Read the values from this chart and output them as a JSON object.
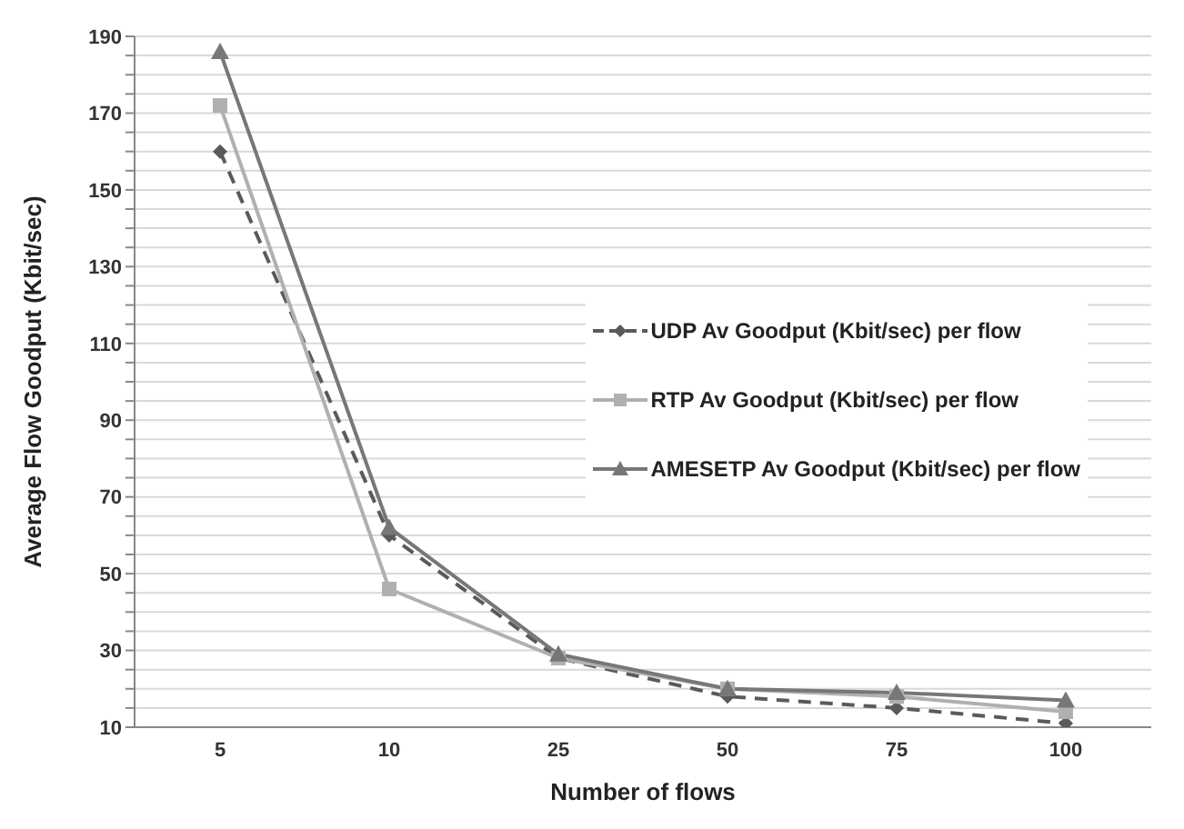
{
  "chart_data": {
    "type": "line",
    "xlabel": "Number of flows",
    "ylabel": "Average Flow Goodput (Kbit/sec)",
    "categories": [
      "5",
      "10",
      "25",
      "50",
      "75",
      "100"
    ],
    "ylim": [
      10,
      190
    ],
    "yticks": [
      10,
      {
        "value": 15,
        "label": null
      },
      {
        "value": 20,
        "label": null
      },
      {
        "value": 25,
        "label": null
      },
      30,
      {
        "value": 35,
        "label": null
      },
      {
        "value": 40,
        "label": null
      },
      {
        "value": 45,
        "label": null
      },
      50,
      {
        "value": 55,
        "label": null
      },
      {
        "value": 60,
        "label": null
      },
      {
        "value": 65,
        "label": null
      },
      70,
      {
        "value": 75,
        "label": null
      },
      {
        "value": 80,
        "label": null
      },
      {
        "value": 85,
        "label": null
      },
      90,
      {
        "value": 95,
        "label": null
      },
      {
        "value": 100,
        "label": null
      },
      {
        "value": 105,
        "label": null
      },
      110,
      {
        "value": 115,
        "label": null
      },
      {
        "value": 120,
        "label": null
      },
      {
        "value": 125,
        "label": null
      },
      130,
      {
        "value": 135,
        "label": null
      },
      {
        "value": 140,
        "label": null
      },
      {
        "value": 145,
        "label": null
      },
      150,
      {
        "value": 155,
        "label": null
      },
      {
        "value": 160,
        "label": null
      },
      {
        "value": 165,
        "label": null
      },
      170,
      {
        "value": 175,
        "label": null
      },
      {
        "value": 180,
        "label": null
      },
      {
        "value": 185,
        "label": null
      },
      190
    ],
    "grid": "y",
    "legend": "right",
    "series": [
      {
        "name": "UDP Av Goodput (Kbit/sec) per flow",
        "color": "#5a5a5a",
        "marker": "diamond",
        "line_style": "dashed",
        "values": [
          160,
          60,
          28,
          18,
          15,
          11
        ]
      },
      {
        "name": "RTP Av Goodput (Kbit/sec) per flow",
        "color": "#b0b0b0",
        "marker": "square",
        "line_style": "solid",
        "values": [
          172,
          46,
          28,
          20,
          18,
          14
        ]
      },
      {
        "name": "AMESETP Av Goodput (Kbit/sec) per flow",
        "color": "#777777",
        "marker": "triangle",
        "line_style": "solid",
        "values": [
          186,
          62,
          29,
          20,
          19,
          17
        ]
      }
    ]
  }
}
